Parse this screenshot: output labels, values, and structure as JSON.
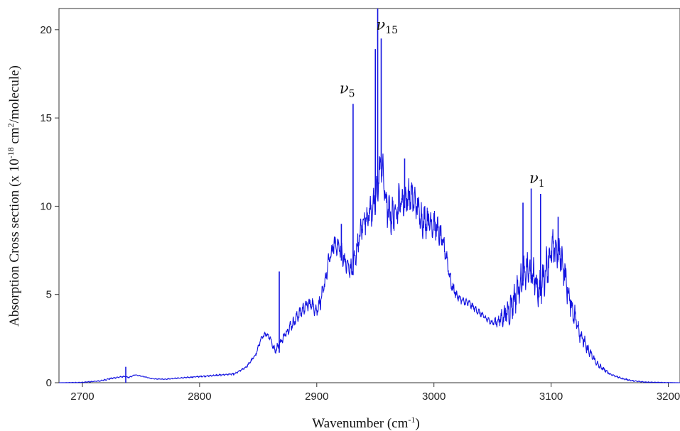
{
  "chart_data": {
    "type": "line",
    "title": "",
    "xlabel": "Wavenumber (cm-1)",
    "xlabel_parts": {
      "main": "Wavenumber (cm",
      "sup": "-1",
      "end": ")"
    },
    "ylabel": "Absorption Cross section (x 10-18 cm2/molecule)",
    "ylabel_parts": {
      "a": "Absorption Cross section (x 10",
      "sup1": "-18",
      "b": " cm",
      "sup2": "2",
      "c": "/molecule)"
    },
    "xlim": [
      2680,
      3210
    ],
    "ylim": [
      0,
      21.2
    ],
    "xticks": [
      2700,
      2800,
      2900,
      3000,
      3100,
      3200
    ],
    "xtick_labels": [
      "2700",
      "2800",
      "2900",
      "3000",
      "3100",
      "3200"
    ],
    "yticks": [
      0,
      5,
      10,
      15,
      20
    ],
    "ytick_labels": [
      "0",
      "5",
      "10",
      "15",
      "20"
    ],
    "grid": false,
    "line_color": "#1414e0",
    "envelope": {
      "x": [
        2680,
        2700,
        2715,
        2725,
        2735,
        2740,
        2745,
        2752,
        2760,
        2770,
        2780,
        2790,
        2800,
        2810,
        2820,
        2830,
        2840,
        2848,
        2852,
        2856,
        2860,
        2864,
        2868,
        2872,
        2876,
        2880,
        2885,
        2890,
        2895,
        2900,
        2905,
        2910,
        2915,
        2920,
        2925,
        2930,
        2935,
        2940,
        2945,
        2950,
        2955,
        2960,
        2965,
        2970,
        2975,
        2980,
        2985,
        2990,
        2995,
        3000,
        3005,
        3010,
        3015,
        3020,
        3025,
        3030,
        3035,
        3040,
        3045,
        3050,
        3055,
        3060,
        3065,
        3070,
        3075,
        3080,
        3085,
        3090,
        3095,
        3100,
        3105,
        3110,
        3115,
        3120,
        3125,
        3130,
        3135,
        3140,
        3150,
        3160,
        3170,
        3180,
        3190,
        3200,
        3210
      ],
      "y": [
        0,
        0.02,
        0.1,
        0.25,
        0.35,
        0.3,
        0.45,
        0.35,
        0.22,
        0.2,
        0.25,
        0.3,
        0.35,
        0.4,
        0.45,
        0.5,
        0.9,
        1.6,
        2.4,
        2.8,
        2.6,
        1.8,
        2.2,
        2.6,
        3.1,
        3.4,
        3.9,
        4.3,
        4.5,
        4.1,
        5.0,
        6.8,
        7.9,
        7.6,
        6.7,
        6.3,
        7.8,
        9.2,
        9.6,
        10.2,
        12.6,
        9.8,
        9.4,
        10.2,
        10.4,
        10.6,
        10.1,
        9.2,
        9.2,
        9.0,
        8.4,
        7.4,
        5.5,
        4.9,
        4.6,
        4.5,
        4.2,
        3.9,
        3.6,
        3.4,
        3.5,
        3.8,
        4.2,
        5.0,
        5.9,
        6.4,
        6.0,
        5.2,
        6.3,
        7.4,
        7.6,
        6.8,
        4.9,
        3.8,
        2.8,
        2.0,
        1.5,
        1.0,
        0.5,
        0.25,
        0.1,
        0.04,
        0.02,
        0.01,
        0
      ]
    },
    "fine_structure_amplitude": {
      "x": [
        2680,
        2720,
        2760,
        2840,
        2870,
        2900,
        2930,
        2945,
        2960,
        3000,
        3020,
        3050,
        3065,
        3085,
        3100,
        3115,
        3135,
        3150,
        3210
      ],
      "y": [
        0,
        0.04,
        0.02,
        0.05,
        0.25,
        0.45,
        0.6,
        0.9,
        1.1,
        0.9,
        0.25,
        0.15,
        0.9,
        1.0,
        1.2,
        0.8,
        0.25,
        0.05,
        0
      ]
    },
    "peaks": [
      {
        "x": 2737,
        "y": 0.9
      },
      {
        "x": 2868,
        "y": 6.3
      },
      {
        "x": 2921,
        "y": 9.0
      },
      {
        "x": 2931,
        "y": 15.8
      },
      {
        "x": 2950,
        "y": 18.9
      },
      {
        "x": 2952,
        "y": 21.2
      },
      {
        "x": 2955,
        "y": 19.5
      },
      {
        "x": 2975,
        "y": 12.7
      },
      {
        "x": 3076,
        "y": 10.2
      },
      {
        "x": 3083,
        "y": 11.0
      },
      {
        "x": 3091,
        "y": 10.7
      },
      {
        "x": 3106,
        "y": 9.4
      }
    ],
    "annotations": [
      {
        "label": "ν",
        "sub": "5",
        "x": 2926,
        "y": 16.4
      },
      {
        "label": "ν",
        "sub": "15",
        "x": 2960,
        "y": 20.0
      },
      {
        "label": "ν",
        "sub": "1",
        "x": 3088,
        "y": 11.3
      }
    ]
  }
}
